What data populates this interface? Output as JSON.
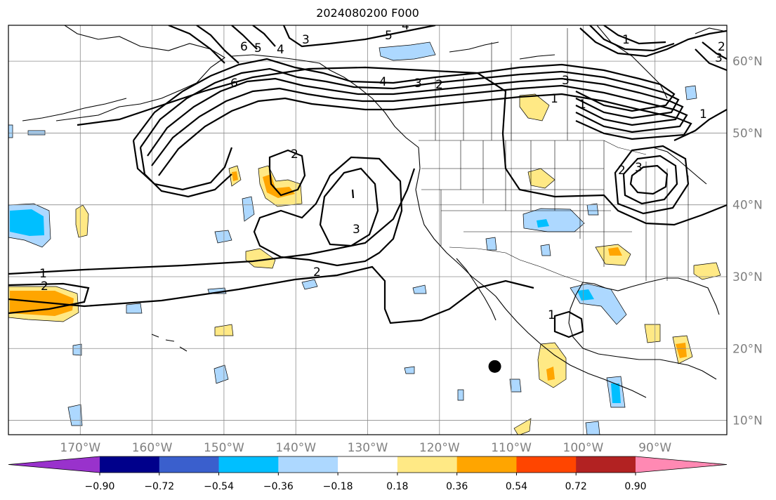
{
  "title": "2024080200 F000",
  "map": {
    "projection": "PlateCarree",
    "lon_range": [
      -180,
      -80
    ],
    "lat_range": [
      8,
      65
    ],
    "lon_tick_labels": [
      "170°W",
      "160°W",
      "150°W",
      "140°W",
      "130°W",
      "120°W",
      "110°W",
      "100°W",
      "90°W"
    ],
    "lon_ticks": [
      -170,
      -160,
      -150,
      -140,
      -130,
      -120,
      -110,
      -100,
      -90
    ],
    "lat_tick_labels": [
      "10°N",
      "20°N",
      "30°N",
      "40°N",
      "50°N",
      "60°N"
    ],
    "lat_ticks": [
      10,
      20,
      30,
      40,
      50,
      60
    ],
    "gridlines": true,
    "gridline_color": "#8c8c8c",
    "frame_color": "#000000",
    "tick_label_color": "#808080",
    "marker": {
      "lon": -112.3,
      "lat": 17.5,
      "color": "#000000"
    }
  },
  "contour_labels": [
    "1",
    "2",
    "2",
    "2",
    "3",
    "4",
    "5",
    "6",
    "6",
    "4",
    "5",
    "4",
    "3",
    "2",
    "1",
    "1",
    "1",
    "2",
    "3",
    "1",
    "1",
    "2",
    "3",
    "3",
    "3"
  ],
  "colorbar": {
    "tick_labels": [
      "−0.90",
      "−0.72",
      "−0.54",
      "−0.36",
      "−0.18",
      "0.18",
      "0.36",
      "0.54",
      "0.72",
      "0.90"
    ],
    "bins": [
      {
        "color": "#9932cc",
        "range": "< -0.90"
      },
      {
        "color": "#00008b",
        "range": "-0.90 to -0.72"
      },
      {
        "color": "#3a5fcd",
        "range": "-0.72 to -0.54"
      },
      {
        "color": "#00bfff",
        "range": "-0.54 to -0.36"
      },
      {
        "color": "#add8ff",
        "range": "-0.36 to -0.18"
      },
      {
        "color": "#ffffff",
        "range": "-0.18 to 0.18"
      },
      {
        "color": "#ffe985",
        "range": "0.18 to 0.36"
      },
      {
        "color": "#ffa500",
        "range": "0.36 to 0.54"
      },
      {
        "color": "#ff4500",
        "range": "0.54 to 0.72"
      },
      {
        "color": "#b22222",
        "range": "0.72 to 0.90"
      },
      {
        "color": "#ff89b3",
        "range": "> 0.90"
      }
    ],
    "extend": "both"
  }
}
